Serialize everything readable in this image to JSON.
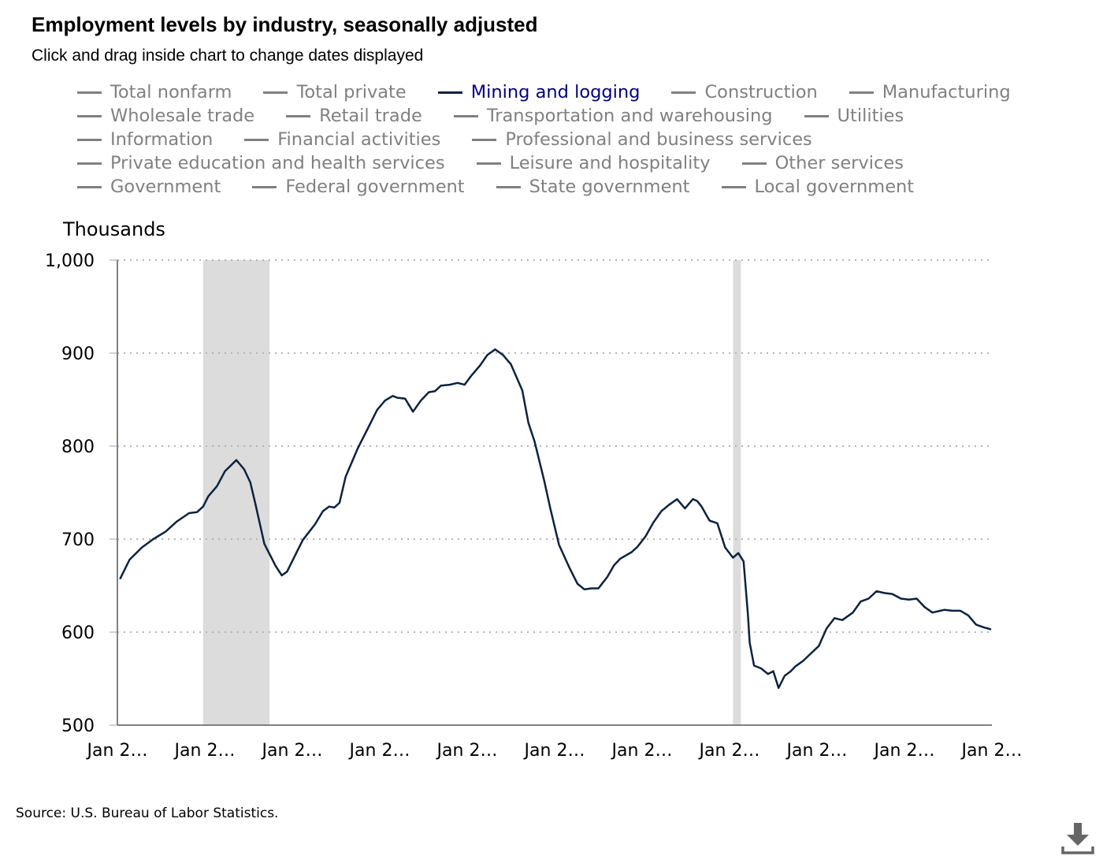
{
  "header": {
    "title": "Employment levels by industry, seasonally adjusted",
    "subtitle": "Click and drag inside chart to change dates displayed"
  },
  "legend": {
    "rows": [
      [
        "Total nonfarm",
        "Total private",
        "Mining and logging",
        "Construction",
        "Manufacturing"
      ],
      [
        "Wholesale trade",
        "Retail trade",
        "Transportation and warehousing",
        "Utilities"
      ],
      [
        "Information",
        "Financial activities",
        "Professional and business services"
      ],
      [
        "Private education and health services",
        "Leisure and hospitality",
        "Other services"
      ],
      [
        "Government",
        "Federal government",
        "State government",
        "Local government"
      ]
    ],
    "active": "Mining and logging",
    "active_text_color": "#000080",
    "active_line_color": "#0b2340",
    "inactive_color": "#808080"
  },
  "footer": {
    "source": "Source: U.S. Bureau of Labor Statistics."
  },
  "icons": {
    "download": "download-icon"
  },
  "chart_data": {
    "type": "line",
    "title": "Employment levels by industry, seasonally adjusted",
    "ylabel": "Thousands",
    "xlabel": "",
    "ylim": [
      500,
      1000
    ],
    "yticks": [
      500,
      600,
      700,
      800,
      900,
      1000
    ],
    "ytick_labels": [
      "500",
      "600",
      "700",
      "800",
      "900",
      "1,000"
    ],
    "xlim": [
      0,
      100
    ],
    "xticks": [
      0,
      10,
      20,
      30,
      40,
      50,
      60,
      70,
      80,
      90,
      100
    ],
    "xtick_labels": [
      "Jan 2…",
      "Jan 2…",
      "Jan 2…",
      "Jan 2…",
      "Jan 2…",
      "Jan 2…",
      "Jan 2…",
      "Jan 2…",
      "Jan 2…",
      "Jan 2…",
      "Jan 2…"
    ],
    "grid": "horizontal dotted",
    "shaded_periods": [
      [
        9.8,
        17.4
      ],
      [
        70.4,
        71.3
      ]
    ],
    "series": [
      {
        "name": "Mining and logging",
        "color": "#0b2340",
        "x": [
          0.3,
          1.4,
          2.8,
          4.1,
          5.5,
          6.8,
          8.2,
          9.1,
          9.8,
          10.4,
          11.4,
          12.3,
          13.6,
          14.5,
          15.2,
          15.8,
          16.8,
          18.1,
          18.8,
          19.4,
          20.3,
          21.2,
          22.6,
          23.5,
          24.2,
          24.8,
          25.4,
          26.1,
          27.5,
          28.8,
          29.7,
          30.6,
          31.5,
          32.0,
          32.9,
          33.8,
          34.7,
          35.6,
          36.3,
          37.0,
          38.0,
          38.9,
          39.7,
          40.5,
          41.5,
          42.3,
          43.2,
          44.1,
          45.0,
          46.3,
          47.0,
          47.7,
          48.8,
          49.5,
          50.5,
          51.7,
          52.6,
          53.4,
          54.2,
          55.0,
          56.0,
          56.8,
          57.5,
          58.8,
          59.5,
          60.4,
          61.3,
          62.2,
          63.1,
          64.0,
          64.9,
          65.8,
          66.3,
          66.8,
          67.7,
          68.6,
          69.5,
          70.4,
          71.0,
          71.6,
          72.1,
          72.3,
          72.8,
          73.6,
          74.4,
          75.0,
          75.6,
          76.3,
          77.0,
          77.5,
          78.4,
          79.3,
          80.2,
          81.1,
          82.0,
          82.9,
          84.1,
          85.0,
          85.9,
          86.8,
          87.7,
          88.6,
          89.6,
          90.5,
          91.4,
          92.3,
          93.2,
          94.1,
          94.6,
          95.5,
          96.4,
          97.3,
          98.2,
          99.1,
          99.9
        ],
        "values": [
          657,
          678,
          691,
          700,
          708,
          719,
          728,
          729,
          735,
          746,
          757,
          773,
          785,
          775,
          761,
          737,
          695,
          671,
          661,
          665,
          682,
          699,
          716,
          730,
          735,
          734,
          739,
          767,
          798,
          822,
          839,
          849,
          854,
          852,
          851,
          837,
          849,
          858,
          859,
          865,
          866,
          868,
          866,
          876,
          887,
          898,
          904,
          898,
          888,
          860,
          825,
          805,
          763,
          733,
          694,
          669,
          652,
          646,
          647,
          647,
          659,
          672,
          679,
          686,
          692,
          703,
          718,
          730,
          737,
          743,
          733,
          743,
          741,
          735,
          720,
          717,
          691,
          680,
          685,
          676,
          619,
          589,
          564,
          561,
          555,
          558,
          540,
          553,
          558,
          563,
          569,
          577,
          585,
          604,
          615,
          613,
          621,
          633,
          636,
          644,
          642,
          641,
          636,
          635,
          636,
          627,
          621,
          623,
          624,
          623,
          623,
          618,
          608,
          605,
          603
        ]
      }
    ],
    "legend_position": "top"
  }
}
